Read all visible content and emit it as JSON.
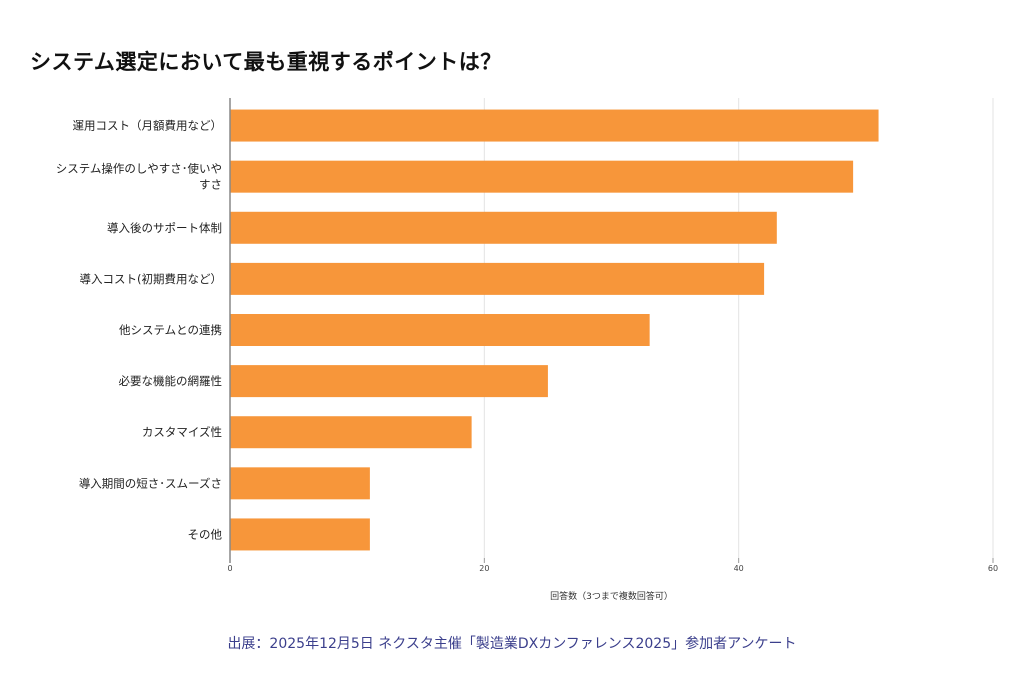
{
  "chart_data": {
    "type": "bar",
    "orientation": "horizontal",
    "title": "システム選定において最も重視するポイントは？",
    "categories": [
      "運用コスト（月額費用など）",
      "システム操作のしやすさ･使いやすさ",
      "導入後のサポート体制",
      "導入コスト(初期費用など）",
      "他システムとの連携",
      "必要な機能の網羅性",
      "カスタマイズ性",
      "導入期間の短さ･スムーズさ",
      "その他"
    ],
    "values": [
      51,
      49,
      43,
      42,
      33,
      25,
      19,
      11,
      11
    ],
    "xlabel": "回答数（3つまで複数回答可）",
    "ylabel": "",
    "xlim": [
      0,
      60
    ],
    "xticks": [
      "0",
      "20",
      "40",
      "60"
    ],
    "grid": true,
    "bar_color": "#f7963a"
  },
  "source": "出展：2025年12月5日 ネクスタ主催「製造業DXカンファレンス2025」参加者アンケート"
}
